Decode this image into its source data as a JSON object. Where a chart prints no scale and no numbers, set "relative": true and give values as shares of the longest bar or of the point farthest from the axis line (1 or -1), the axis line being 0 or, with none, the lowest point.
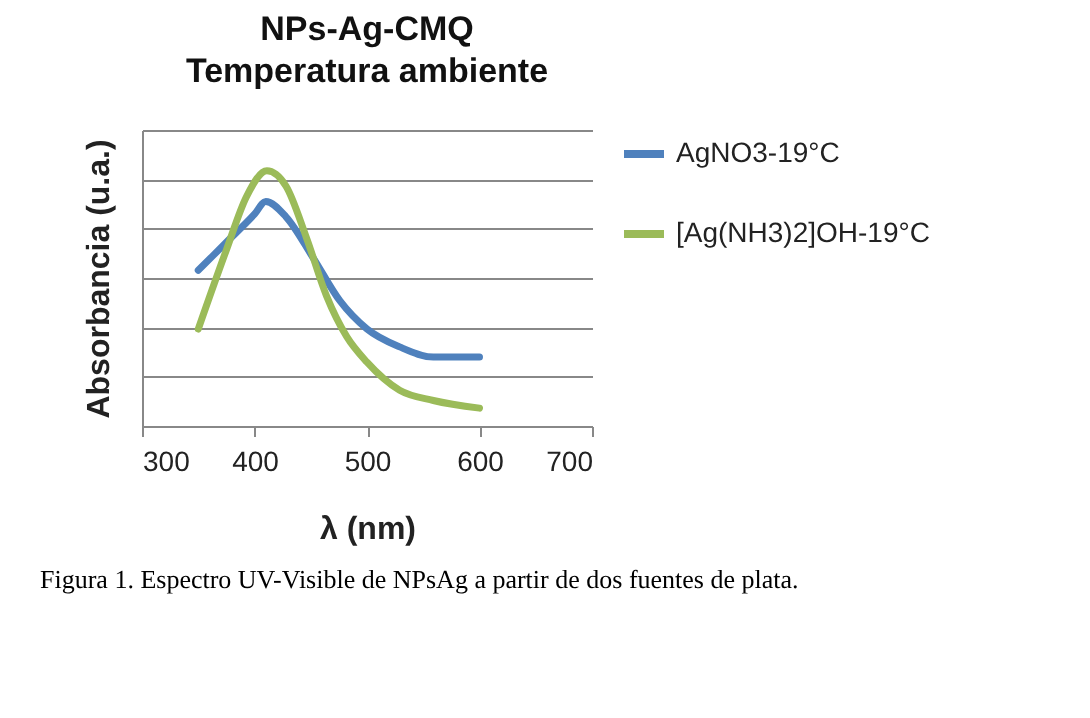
{
  "chart_data": {
    "type": "line",
    "title": "NPs-Ag-CMQ",
    "subtitle": "Temperatura ambiente",
    "xlabel": "λ (nm)",
    "ylabel": "Absorbancia (u.a.)",
    "relative": true,
    "xlim": [
      300,
      700
    ],
    "xticks": [
      300,
      400,
      500,
      600,
      700
    ],
    "grid": "y",
    "legend": "right",
    "marker": "none",
    "line_style": "solid",
    "annotations": [
      "Figura 1. Espectro UV-Visible de NPsAg a partir de dos fuentes de plata."
    ],
    "series": [
      {
        "name": "AgNO3-19°C",
        "color": "#4f81bd",
        "x": [
          350,
          375,
          400,
          410,
          428,
          452,
          476,
          500,
          529,
          559,
          600
        ],
        "values": [
          0.61,
          0.72,
          0.83,
          0.88,
          0.82,
          0.66,
          0.49,
          0.38,
          0.31,
          0.27,
          0.27
        ]
      },
      {
        "name": "[Ag(NH3)2]OH-19°C",
        "color": "#9bbb59",
        "x": [
          350,
          375,
          393,
          411,
          428,
          446,
          464,
          482,
          500,
          529,
          559,
          600
        ],
        "values": [
          0.38,
          0.69,
          0.9,
          1.0,
          0.94,
          0.74,
          0.51,
          0.35,
          0.25,
          0.14,
          0.1,
          0.07
        ]
      }
    ]
  }
}
